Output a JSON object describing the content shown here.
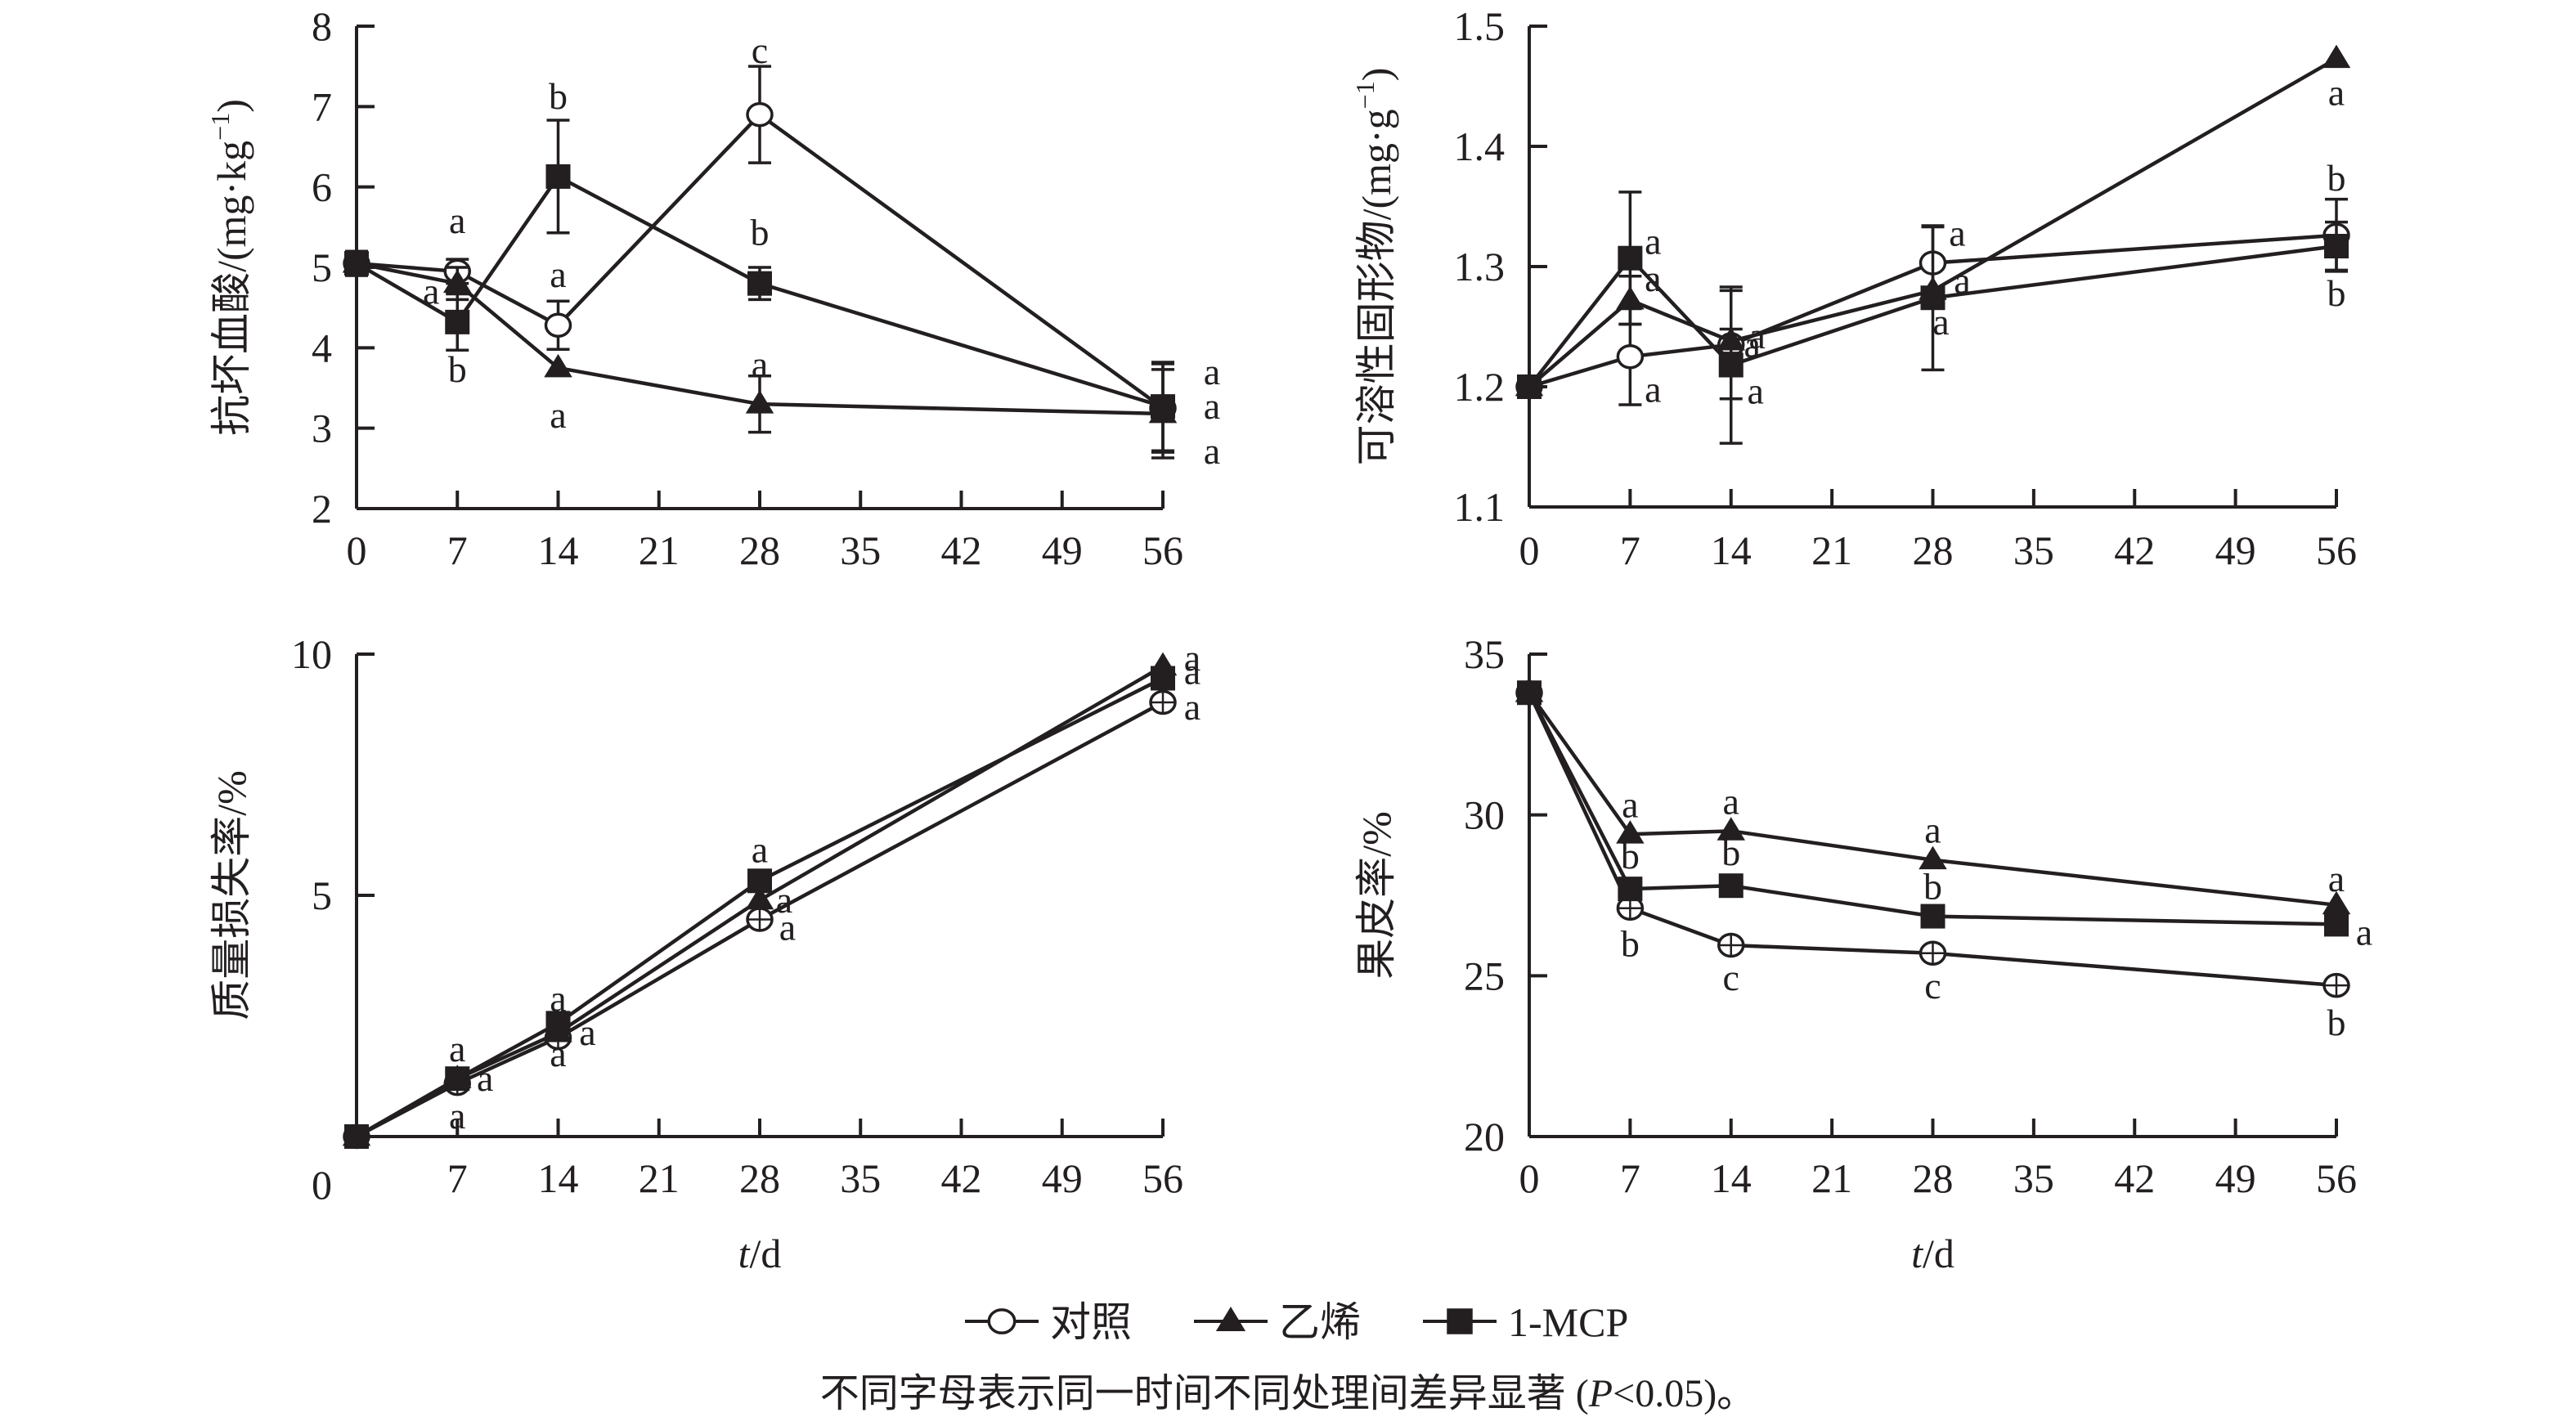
{
  "figure": {
    "legend": [
      {
        "name": "对照",
        "marker": "open-circle"
      },
      {
        "name": "乙烯",
        "marker": "filled-triangle"
      },
      {
        "name": "1-MCP",
        "marker": "filled-square"
      }
    ],
    "caption": "不同字母表示同一时间不同处理间差异显著 (P<0.05)。",
    "caption_parts": {
      "before": "不同字母表示同一时间不同处理间差异显著 (",
      "p": "P",
      "after": "<0.05)。"
    },
    "ink_color": "#231f20"
  },
  "chart_data": [
    {
      "id": "ascorbic-acid",
      "type": "line",
      "title": "",
      "ylabel": "抗坏血酸/(mg·kg⁻¹)",
      "ylabel_parts": {
        "main": "抗坏血酸/(mg·kg",
        "sup": "−1",
        "close": ")"
      },
      "xlabel": "",
      "x": [
        0,
        7,
        14,
        28,
        56
      ],
      "xticks": [
        0,
        7,
        14,
        21,
        28,
        35,
        42,
        49,
        56
      ],
      "yticks": [
        2,
        3,
        4,
        5,
        6,
        7,
        8
      ],
      "xlim": [
        0,
        56
      ],
      "ylim": [
        2,
        8
      ],
      "grid": false,
      "series": [
        {
          "name": "对照",
          "marker": "open-circle",
          "values": [
            5.05,
            4.95,
            4.28,
            6.9,
            3.25
          ],
          "err": [
            0.15,
            0.15,
            0.3,
            0.6,
            0.55
          ],
          "letters": [
            "",
            "a",
            "a",
            "c",
            "a"
          ]
        },
        {
          "name": "乙烯",
          "marker": "filled-triangle",
          "values": [
            5.05,
            4.8,
            3.75,
            3.3,
            3.18
          ],
          "err": [
            0.15,
            0.2,
            0.0,
            0.35,
            0.55
          ],
          "letters": [
            "",
            "a",
            "a",
            "a",
            "a"
          ]
        },
        {
          "name": "1-MCP",
          "marker": "filled-square",
          "values": [
            5.05,
            4.32,
            6.13,
            4.8,
            3.27
          ],
          "err": [
            0.15,
            0.35,
            0.7,
            0.2,
            0.55
          ],
          "letters": [
            "",
            "b",
            "b",
            "b",
            "a"
          ]
        }
      ]
    },
    {
      "id": "soluble-solids",
      "type": "line",
      "title": "",
      "ylabel": "可溶性固形物/(mg·g⁻¹)",
      "ylabel_parts": {
        "main": "可溶性固形物/(mg·g",
        "sup": "−1",
        "close": ")"
      },
      "xlabel": "",
      "x": [
        0,
        7,
        14,
        28,
        56
      ],
      "xticks": [
        0,
        7,
        14,
        21,
        28,
        35,
        42,
        49,
        56
      ],
      "yticks": [
        1.1,
        1.2,
        1.3,
        1.4,
        1.5
      ],
      "xlim": [
        0,
        56
      ],
      "ylim": [
        1.1,
        1.5
      ],
      "grid": false,
      "series": [
        {
          "name": "对照",
          "marker": "open-circle",
          "values": [
            1.2,
            1.225,
            1.235,
            1.303,
            1.326
          ],
          "err": [
            0,
            0.04,
            0.045,
            0.03,
            0.03
          ],
          "letters": [
            "",
            "a",
            "a",
            "a",
            "b"
          ]
        },
        {
          "name": "乙烯",
          "marker": "filled-triangle",
          "values": [
            1.2,
            1.272,
            1.238,
            1.28,
            1.473
          ],
          "err": [
            0,
            0.02,
            0.01,
            0.0,
            0.0
          ],
          "letters": [
            "",
            "a",
            "a",
            "a",
            "a"
          ]
        },
        {
          "name": "1-MCP",
          "marker": "filled-square",
          "values": [
            1.2,
            1.307,
            1.218,
            1.274,
            1.317
          ],
          "err": [
            0,
            0.055,
            0.065,
            0.06,
            0.02
          ],
          "letters": [
            "",
            "a",
            "a",
            "a",
            "b"
          ]
        }
      ]
    },
    {
      "id": "weight-loss",
      "type": "line",
      "title": "",
      "ylabel": "质量损失率/%",
      "ylabel_parts": {
        "main": "质量损失率/%",
        "sup": "",
        "close": ""
      },
      "xlabel": "t/d",
      "x": [
        0,
        7,
        14,
        28,
        56
      ],
      "xticks": [
        0,
        7,
        14,
        21,
        28,
        35,
        42,
        49,
        56
      ],
      "yticks": [
        5,
        10
      ],
      "origin_label": "0",
      "xlim": [
        0,
        56
      ],
      "ylim": [
        0,
        10
      ],
      "grid": false,
      "series": [
        {
          "name": "对照",
          "marker": "crossed-circle",
          "values": [
            0,
            1.1,
            2.05,
            4.5,
            9.0
          ],
          "err": [
            0,
            0,
            0,
            0,
            0
          ],
          "letters": [
            "",
            "a",
            "a",
            "a",
            "a"
          ]
        },
        {
          "name": "乙烯",
          "marker": "filled-triangle",
          "values": [
            0,
            1.2,
            2.15,
            4.9,
            9.75
          ],
          "err": [
            0,
            0,
            0,
            0,
            0
          ],
          "letters": [
            "",
            "a",
            "a",
            "a",
            "a"
          ]
        },
        {
          "name": "1-MCP",
          "marker": "filled-square",
          "values": [
            0,
            1.2,
            2.35,
            5.3,
            9.5
          ],
          "err": [
            0,
            0,
            0,
            0,
            0
          ],
          "letters": [
            "",
            "a",
            "a",
            "a",
            "a"
          ]
        }
      ]
    },
    {
      "id": "peel-ratio",
      "type": "line",
      "title": "",
      "ylabel": "果皮率/%",
      "ylabel_parts": {
        "main": "果皮率/%",
        "sup": "",
        "close": ""
      },
      "xlabel": "t/d",
      "x": [
        0,
        7,
        14,
        28,
        56
      ],
      "xticks": [
        0,
        7,
        14,
        21,
        28,
        35,
        42,
        49,
        56
      ],
      "yticks": [
        20,
        25,
        30,
        35
      ],
      "xlim": [
        0,
        56
      ],
      "ylim": [
        20,
        35
      ],
      "grid": false,
      "series": [
        {
          "name": "对照",
          "marker": "crossed-circle",
          "values": [
            33.8,
            27.1,
            25.95,
            25.7,
            24.7
          ],
          "err": [
            0,
            0,
            0,
            0,
            0
          ],
          "letters": [
            "",
            "b",
            "c",
            "c",
            "b"
          ]
        },
        {
          "name": "乙烯",
          "marker": "filled-triangle",
          "values": [
            33.8,
            29.4,
            29.5,
            28.6,
            27.2
          ],
          "err": [
            0,
            0,
            0,
            0,
            0
          ],
          "letters": [
            "",
            "a",
            "a",
            "a",
            "a"
          ]
        },
        {
          "name": "1-MCP",
          "marker": "filled-square",
          "values": [
            33.8,
            27.7,
            27.8,
            26.85,
            26.6
          ],
          "err": [
            0,
            0,
            0,
            0,
            0
          ],
          "letters": [
            "",
            "b",
            "b",
            "b",
            "a"
          ]
        }
      ]
    }
  ]
}
